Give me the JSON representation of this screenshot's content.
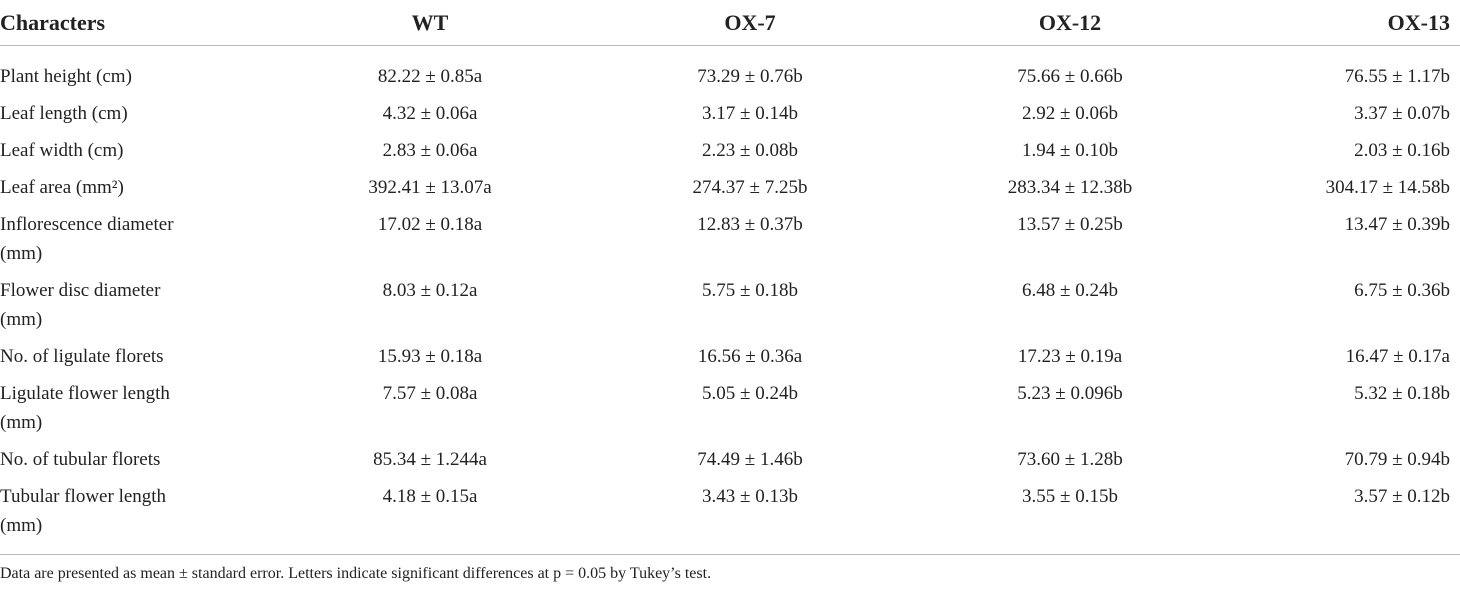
{
  "table": {
    "header": [
      "Characters",
      "WT",
      "OX-7",
      "OX-12",
      "OX-13"
    ],
    "rows": [
      [
        "Plant height (cm)",
        "82.22 ± 0.85a",
        "73.29 ± 0.76b",
        "75.66 ± 0.66b",
        "76.55 ± 1.17b"
      ],
      [
        "Leaf length (cm)",
        "4.32 ± 0.06a",
        "3.17 ± 0.14b",
        "2.92 ± 0.06b",
        "3.37 ± 0.07b"
      ],
      [
        "Leaf width (cm)",
        "2.83 ± 0.06a",
        "2.23 ± 0.08b",
        "1.94 ± 0.10b",
        "2.03 ± 0.16b"
      ],
      [
        "Leaf area (mm²)",
        "392.41 ± 13.07a",
        "274.37 ± 7.25b",
        "283.34 ± 12.38b",
        "304.17 ± 14.58b"
      ],
      [
        "Inflorescence diameter (mm)",
        "17.02 ± 0.18a",
        "12.83 ± 0.37b",
        "13.57 ± 0.25b",
        "13.47 ± 0.39b"
      ],
      [
        "Flower disc diameter (mm)",
        "8.03 ± 0.12a",
        "5.75 ± 0.18b",
        "6.48 ± 0.24b",
        "6.75 ± 0.36b"
      ],
      [
        "No. of ligulate florets",
        "15.93 ± 0.18a",
        "16.56 ± 0.36a",
        "17.23 ± 0.19a",
        "16.47 ± 0.17a"
      ],
      [
        "Ligulate flower length (mm)",
        "7.57 ± 0.08a",
        "5.05 ± 0.24b",
        "5.23 ± 0.096b",
        "5.32 ± 0.18b"
      ],
      [
        "No. of tubular florets",
        "85.34 ± 1.244a",
        "74.49 ± 1.46b",
        "73.60 ± 1.28b",
        "70.79 ± 0.94b"
      ],
      [
        "Tubular flower length (mm)",
        "4.18 ± 0.15a",
        "3.43 ± 0.13b",
        "3.55 ± 0.15b",
        "3.57 ± 0.12b"
      ]
    ],
    "footnote": "Data are presented as mean ± standard error. Letters indicate significant differences at p = 0.05 by Tukey’s test."
  }
}
